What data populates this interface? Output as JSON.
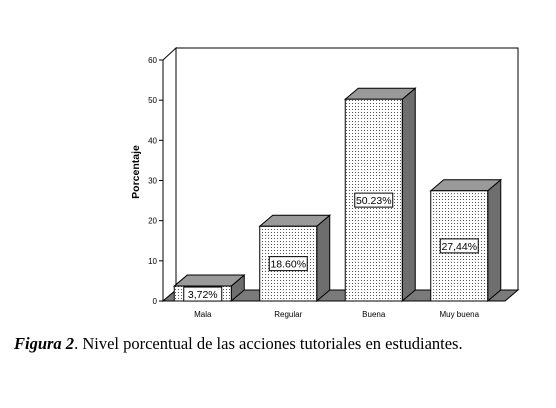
{
  "chart_data": {
    "type": "bar",
    "categories": [
      "Mala",
      "Regular",
      "Buena",
      "Muy buena"
    ],
    "values": [
      3.72,
      18.6,
      50.23,
      27.44
    ],
    "data_labels": [
      "3,72%",
      "18.60%",
      "50.23%",
      "27,44%"
    ],
    "title": "",
    "xlabel": "",
    "ylabel": "Porcentaje",
    "ylim": [
      0,
      60
    ],
    "yticks": [
      "0",
      "10",
      "20",
      "30",
      "40",
      "50",
      "60"
    ],
    "style": "3d-dotted-bars",
    "grid": false,
    "colors": {
      "bar_face": "#ffffff",
      "bar_dots": "#555555",
      "bar_top": "#9a9a9a",
      "bar_side": "#6e6e6e",
      "floor": "#7a7a7a",
      "wall": "#ffffff"
    }
  },
  "caption": {
    "figure_label": "Figura 2",
    "text": ". Nivel porcentual de las acciones tutoriales en estudiantes."
  }
}
